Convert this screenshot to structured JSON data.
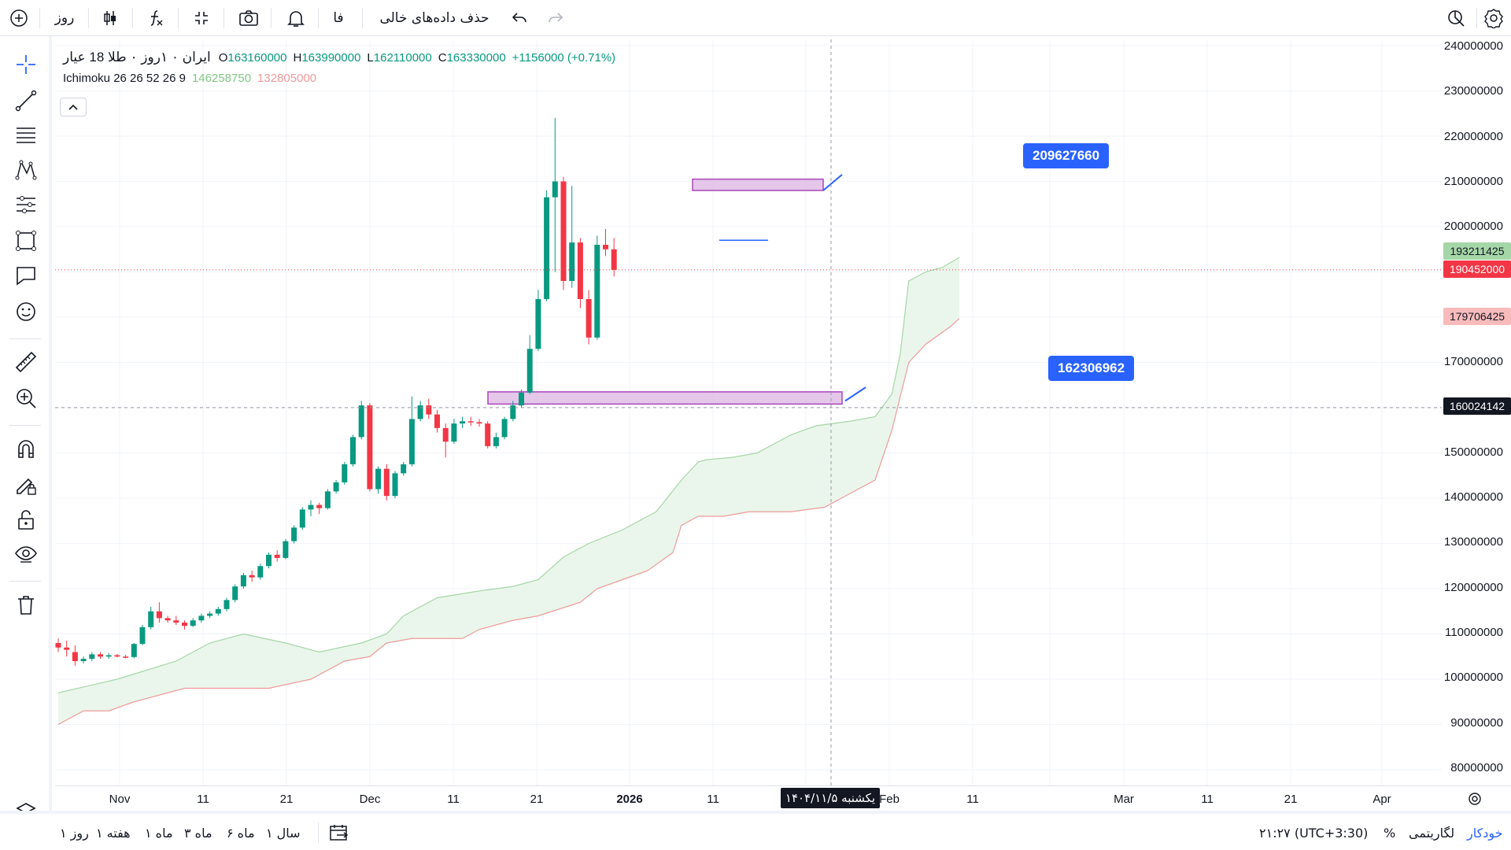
{
  "toolbar": {
    "interval": "روز",
    "language": "فا",
    "hide_empty": "حذف داده‌های خالی"
  },
  "legend": {
    "symbol": "ایران ۰ ۱روز ۰ طلا 18 عیار",
    "o_key": "O",
    "o_val": "163160000",
    "h_key": "H",
    "h_val": "163990000",
    "l_key": "L",
    "l_val": "162110000",
    "c_key": "C",
    "c_val": "163330000",
    "change": "+1156000 (+0.71%)",
    "ind_name": "Ichimoku 26 26 52 26 9",
    "ind_val1": "146258750",
    "ind_val2": "132805000"
  },
  "annotations": {
    "upper_box_price": "209627660",
    "lower_box_price": "162306962"
  },
  "price_axis": {
    "labels": [
      "240000000",
      "230000000",
      "220000000",
      "210000000",
      "200000000",
      "170000000",
      "150000000",
      "140000000",
      "130000000",
      "120000000",
      "110000000",
      "100000000",
      "90000000",
      "80000000"
    ],
    "tag_span_a": "193211425",
    "tag_last": "190452000",
    "tag_span_b": "179706425",
    "tag_crosshair": "160024142"
  },
  "time_axis": {
    "labels": [
      "Nov",
      "11",
      "21",
      "Dec",
      "11",
      "21",
      "2026",
      "11",
      "Feb",
      "11",
      "Mar",
      "11",
      "21",
      "Apr"
    ],
    "crosshair_date": "یکشنبه ۱۴۰۴/۱۱/۵"
  },
  "bottom_bar": {
    "ranges": [
      "سال ۱",
      "ماه ۶",
      "ماه ۳",
      "ماه ۱",
      "هفته ۱",
      "روز ۱"
    ],
    "time": "۲۱:۲۷ (UTC+3:30)",
    "percent": "%",
    "log": "لگاریتمی",
    "auto": "خودکار"
  },
  "colors": {
    "up": "#089981",
    "down": "#f23645",
    "accent": "#2962ff",
    "cloud_fill": "#e8f5e9",
    "zone": "#e1bee7"
  },
  "chart_data": {
    "type": "candlestick",
    "title": "ایران ۰ ۱روز ۰ طلا 18 عیار",
    "ylim": [
      75000000,
      240000000
    ],
    "series_ohlc_approx": [
      [
        108000000,
        109000000,
        106000000,
        107000000
      ],
      [
        107000000,
        108500000,
        105000000,
        106500000
      ],
      [
        106000000,
        107500000,
        103000000,
        104000000
      ],
      [
        104000000,
        105000000,
        103500000,
        104500000
      ],
      [
        104500000,
        106000000,
        104000000,
        105500000
      ],
      [
        105500000,
        106000000,
        104500000,
        105000000
      ],
      [
        105000000,
        105800000,
        104500000,
        105300000
      ],
      [
        105300000,
        105600000,
        104800000,
        105000000
      ],
      [
        105000000,
        105400000,
        104600000,
        104900000
      ],
      [
        104900000,
        108000000,
        104600000,
        107800000
      ],
      [
        107800000,
        112000000,
        107500000,
        111500000
      ],
      [
        111500000,
        116000000,
        111000000,
        115000000
      ],
      [
        115000000,
        117000000,
        112500000,
        113500000
      ],
      [
        113500000,
        114000000,
        112500000,
        113000000
      ],
      [
        113000000,
        114000000,
        112000000,
        112500000
      ],
      [
        112500000,
        113000000,
        111000000,
        111800000
      ],
      [
        111800000,
        113500000,
        111500000,
        113000000
      ],
      [
        113000000,
        114500000,
        112500000,
        114000000
      ],
      [
        114000000,
        115000000,
        113500000,
        114500000
      ],
      [
        114500000,
        116000000,
        114000000,
        115500000
      ],
      [
        115500000,
        118000000,
        115000000,
        117500000
      ],
      [
        117500000,
        121000000,
        117000000,
        120500000
      ],
      [
        120500000,
        123500000,
        120000000,
        123000000
      ],
      [
        123000000,
        124000000,
        121500000,
        122500000
      ],
      [
        122500000,
        125500000,
        122000000,
        125000000
      ],
      [
        125000000,
        128000000,
        124500000,
        127500000
      ],
      [
        127500000,
        128500000,
        126000000,
        126800000
      ],
      [
        126800000,
        131000000,
        126500000,
        130500000
      ],
      [
        130500000,
        134000000,
        130000000,
        133500000
      ],
      [
        133500000,
        138000000,
        133000000,
        137500000
      ],
      [
        137500000,
        139500000,
        136000000,
        138500000
      ],
      [
        138500000,
        139000000,
        136500000,
        137800000
      ],
      [
        137800000,
        142000000,
        137500000,
        141500000
      ],
      [
        141500000,
        144000000,
        141000000,
        143500000
      ],
      [
        143500000,
        148000000,
        143000000,
        147500000
      ],
      [
        147500000,
        154000000,
        147000000,
        153500000
      ],
      [
        153500000,
        161500000,
        153000000,
        160500000
      ],
      [
        160500000,
        161000000,
        141500000,
        142000000
      ],
      [
        142000000,
        147000000,
        141000000,
        146500000
      ],
      [
        146500000,
        147500000,
        139500000,
        140500000
      ],
      [
        140500000,
        146000000,
        140000000,
        145500000
      ],
      [
        145500000,
        148000000,
        145000000,
        147500000
      ],
      [
        147500000,
        162500000,
        147000000,
        157500000
      ],
      [
        157500000,
        161500000,
        157000000,
        160500000
      ],
      [
        160500000,
        162000000,
        157500000,
        158500000
      ],
      [
        158500000,
        159500000,
        154500000,
        155500000
      ],
      [
        155500000,
        156500000,
        149000000,
        152500000
      ],
      [
        152500000,
        157500000,
        152000000,
        156500000
      ],
      [
        156500000,
        158000000,
        155500000,
        157000000
      ],
      [
        157000000,
        158000000,
        156000000,
        156800000
      ],
      [
        156800000,
        157500000,
        155800000,
        156500000
      ],
      [
        156500000,
        157000000,
        151000000,
        151500000
      ],
      [
        151500000,
        154500000,
        151000000,
        153500000
      ],
      [
        153500000,
        158000000,
        153000000,
        157500000
      ],
      [
        157500000,
        161500000,
        157000000,
        160500000
      ],
      [
        160500000,
        163990000,
        160000000,
        163330000
      ],
      [
        163330000,
        176000000,
        163000000,
        173000000
      ],
      [
        173000000,
        186000000,
        172500000,
        184000000
      ],
      [
        184000000,
        208000000,
        183500000,
        206500000
      ],
      [
        206500000,
        224000000,
        190000000,
        210000000
      ],
      [
        210000000,
        211000000,
        186000000,
        188000000
      ],
      [
        188000000,
        209000000,
        186500000,
        196500000
      ],
      [
        196500000,
        197500000,
        182000000,
        184000000
      ],
      [
        184000000,
        186000000,
        174000000,
        175500000
      ],
      [
        175500000,
        198000000,
        175000000,
        196000000
      ],
      [
        196000000,
        199500000,
        193500000,
        195000000
      ],
      [
        195000000,
        197500000,
        189000000,
        190452000
      ]
    ]
  }
}
